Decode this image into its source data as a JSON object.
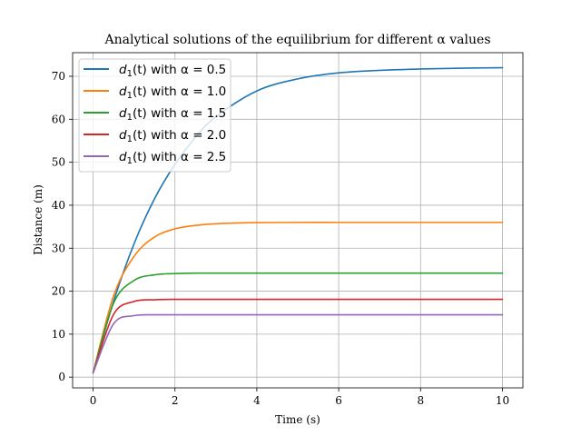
{
  "chart_data": {
    "type": "line",
    "title": "Analytical solutions of the equilibrium for different α values",
    "xlabel": "Time (s)",
    "ylabel": "Distance (m)",
    "xlim": [
      -0.5,
      10.5
    ],
    "ylim": [
      -2.5,
      75.5
    ],
    "xticks": [
      0,
      2,
      4,
      6,
      8,
      10
    ],
    "yticks": [
      0,
      10,
      20,
      30,
      40,
      50,
      60,
      70
    ],
    "grid": true,
    "legend_position": "top-left",
    "colors": [
      "#1f77b4",
      "#ff7f0e",
      "#2ca02c",
      "#d62728",
      "#9467bd"
    ],
    "x": [
      0,
      0.5,
      1,
      1.5,
      2,
      2.5,
      3,
      4,
      5,
      6,
      7,
      8,
      9,
      10
    ],
    "series": [
      {
        "name": "d1(t) with α = 0.5",
        "legend_parts": [
          "d",
          "1",
          "(t) with α = 0.5"
        ],
        "values": [
          1.0,
          17.6,
          31.0,
          41.5,
          49.5,
          55.8,
          60.6,
          66.6,
          69.4,
          70.8,
          71.4,
          71.7,
          71.9,
          72.0
        ]
      },
      {
        "name": "d1(t) with α = 1.0",
        "legend_parts": [
          "d",
          "1",
          "(t) with α = 1.0"
        ],
        "values": [
          1.0,
          18.9,
          28.1,
          32.6,
          34.5,
          35.3,
          35.7,
          35.95,
          36.0,
          36.0,
          36.0,
          36.0,
          36.0,
          36.0
        ]
      },
      {
        "name": "d1(t) with α = 1.5",
        "legend_parts": [
          "d",
          "1",
          "(t) with α = 1.5"
        ],
        "values": [
          1.0,
          17.2,
          22.5,
          23.8,
          24.1,
          24.2,
          24.2,
          24.2,
          24.2,
          24.2,
          24.2,
          24.2,
          24.2,
          24.2
        ]
      },
      {
        "name": "d1(t) with α = 2.0",
        "legend_parts": [
          "d",
          "1",
          "(t) with α = 2.0"
        ],
        "values": [
          1.0,
          14.6,
          17.6,
          18.0,
          18.1,
          18.1,
          18.1,
          18.1,
          18.1,
          18.1,
          18.1,
          18.1,
          18.1,
          18.1
        ]
      },
      {
        "name": "d1(t) with α = 2.5",
        "legend_parts": [
          "d",
          "1",
          "(t) with α = 2.5"
        ],
        "values": [
          1.0,
          12.4,
          14.3,
          14.5,
          14.5,
          14.5,
          14.5,
          14.5,
          14.5,
          14.5,
          14.5,
          14.5,
          14.5,
          14.5
        ]
      }
    ]
  }
}
